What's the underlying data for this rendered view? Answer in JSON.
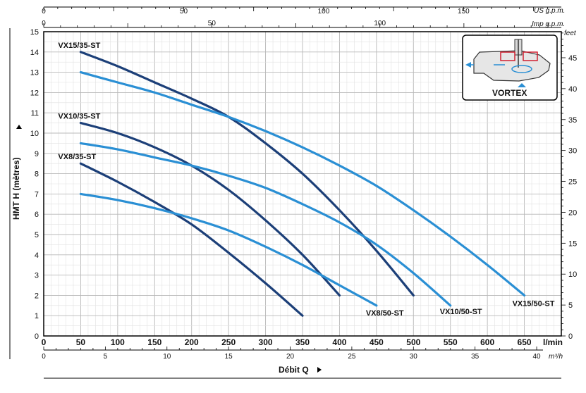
{
  "chart_data": {
    "type": "line",
    "xlabel": "Débit Q",
    "ylabel": "HMT H (mètres)",
    "x_unit": "l/min",
    "ylim": [
      0,
      15
    ],
    "xlim": [
      0,
      700
    ],
    "y_right_unit": "feet",
    "top_axis_units": [
      "US g.p.m.",
      "Imp g.p.m."
    ],
    "bottom_secondary_unit": "m³/h",
    "grid": true,
    "x_ticks": [
      0,
      50,
      100,
      150,
      200,
      250,
      300,
      350,
      400,
      450,
      500,
      550,
      600,
      650
    ],
    "y_ticks": [
      0,
      1,
      2,
      3,
      4,
      5,
      6,
      7,
      8,
      9,
      10,
      11,
      12,
      13,
      14,
      15
    ],
    "feet_ticks": [
      0,
      5,
      10,
      15,
      20,
      25,
      30,
      35,
      40,
      45
    ],
    "m3h_ticks": [
      0,
      5,
      10,
      15,
      20,
      25,
      30,
      35,
      40
    ],
    "us_gpm_ticks": [
      0,
      50,
      100,
      150
    ],
    "imp_gpm_ticks": [
      0,
      50,
      100
    ],
    "series": [
      {
        "name": "VX15/35-ST",
        "color": "#1c3f78",
        "x": [
          50,
          100,
          150,
          200,
          250,
          300,
          350,
          400,
          450,
          500
        ],
        "y": [
          14,
          13.3,
          12.5,
          11.7,
          10.8,
          9.5,
          8.0,
          6.2,
          4.2,
          2.0
        ]
      },
      {
        "name": "VX10/35-ST",
        "color": "#1c3f78",
        "x": [
          50,
          100,
          150,
          200,
          250,
          300,
          350,
          400
        ],
        "y": [
          10.5,
          10.0,
          9.3,
          8.4,
          7.2,
          5.7,
          4.0,
          2.0
        ]
      },
      {
        "name": "VX8/35-ST",
        "color": "#1c3f78",
        "x": [
          50,
          100,
          150,
          200,
          250,
          300,
          350
        ],
        "y": [
          8.5,
          7.6,
          6.6,
          5.5,
          4.1,
          2.6,
          1.0
        ]
      },
      {
        "name": "VX15/50-ST",
        "color": "#2a8fd4",
        "x": [
          50,
          100,
          150,
          200,
          250,
          300,
          350,
          400,
          450,
          500,
          550,
          600,
          650
        ],
        "y": [
          13,
          12.5,
          12.0,
          11.4,
          10.8,
          10.1,
          9.3,
          8.4,
          7.4,
          6.2,
          4.9,
          3.5,
          2.0
        ]
      },
      {
        "name": "VX10/50-ST",
        "color": "#2a8fd4",
        "x": [
          50,
          100,
          150,
          200,
          250,
          300,
          350,
          400,
          450,
          500,
          550
        ],
        "y": [
          9.5,
          9.2,
          8.8,
          8.4,
          7.9,
          7.3,
          6.5,
          5.6,
          4.5,
          3.1,
          1.5
        ]
      },
      {
        "name": "VX8/50-ST",
        "color": "#2a8fd4",
        "x": [
          50,
          100,
          150,
          200,
          250,
          300,
          350,
          400,
          450
        ],
        "y": [
          7.0,
          6.7,
          6.3,
          5.8,
          5.2,
          4.4,
          3.5,
          2.5,
          1.5
        ]
      }
    ],
    "annotations": [
      "VX15/35-ST",
      "VX10/35-ST",
      "VX8/35-ST",
      "VX8/50-ST",
      "VX10/50-ST",
      "VX15/50-ST"
    ]
  },
  "inset": {
    "label": "VORTEX",
    "icon": "vortex-pump-diagram"
  }
}
